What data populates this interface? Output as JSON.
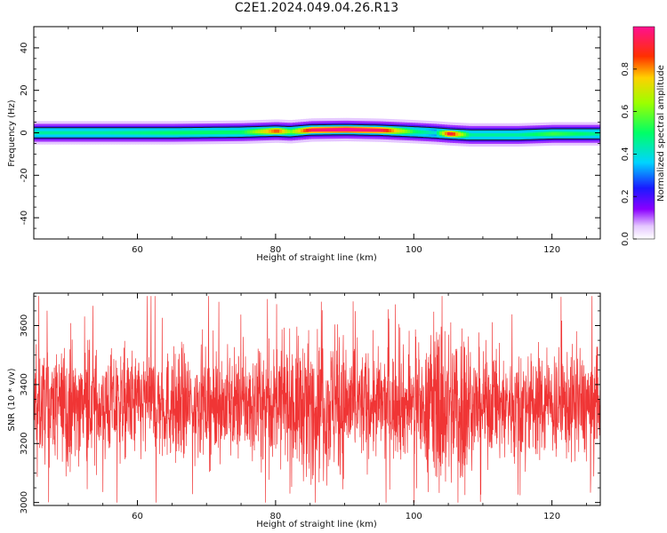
{
  "figure": {
    "title": "C2E1.2024.049.04.26.R13"
  },
  "chart_data": [
    {
      "type": "heatmap",
      "title": "C2E1.2024.049.04.26.R13",
      "xlabel": "Height of straight line (km)",
      "ylabel": "Frequency (Hz)",
      "xlim": [
        45,
        127
      ],
      "ylim": [
        -50,
        50
      ],
      "x_ticks": [
        60,
        80,
        100,
        120
      ],
      "x_tick_labels": [
        "60",
        "80",
        "100",
        "120"
      ],
      "y_ticks": [
        -40,
        -20,
        0,
        20,
        40
      ],
      "y_tick_labels": [
        "-40",
        "-20",
        "0",
        "20",
        "40"
      ],
      "colorbar": {
        "label": "Normalized spectral amplitude",
        "range": [
          0,
          1
        ],
        "ticks": [
          0,
          0.2,
          0.4,
          0.6,
          0.8
        ],
        "tick_labels": [
          "0.0",
          "0.2",
          "0.4",
          "0.6",
          "0.8"
        ],
        "colormap": "rainbow (white-violet-blue-cyan-green-yellow-red-magenta)"
      },
      "ridge": {
        "x": [
          45,
          55,
          65,
          75,
          80,
          82,
          85,
          90,
          95,
          100,
          103,
          105,
          108,
          115,
          120,
          127
        ],
        "center_freq": [
          0,
          0,
          0,
          0.3,
          0.8,
          0.5,
          1.3,
          1.5,
          1.2,
          0.5,
          0,
          -0.5,
          -1,
          -1,
          -0.5,
          -0.5
        ],
        "peak_amplitude": [
          0.45,
          0.45,
          0.5,
          0.5,
          0.85,
          0.6,
          0.95,
          1.0,
          0.95,
          0.5,
          0.4,
          0.95,
          0.45,
          0.45,
          0.55,
          0.45
        ]
      }
    },
    {
      "type": "line",
      "xlabel": "Height of straight line (km)",
      "ylabel": "SNR (10 * v/v)",
      "xlim": [
        45,
        127
      ],
      "ylim": [
        2990,
        3710
      ],
      "x_ticks": [
        60,
        80,
        100,
        120
      ],
      "x_tick_labels": [
        "60",
        "80",
        "100",
        "120"
      ],
      "y_ticks": [
        3000,
        3200,
        3400,
        3600
      ],
      "y_tick_labels": [
        "3000",
        "3200",
        "3400",
        "3600"
      ],
      "series": [
        {
          "color": "#f03535",
          "approx_mean": 3330,
          "approx_typical_range": [
            3150,
            3550
          ],
          "min": 3000,
          "max": 3700
        }
      ]
    }
  ]
}
